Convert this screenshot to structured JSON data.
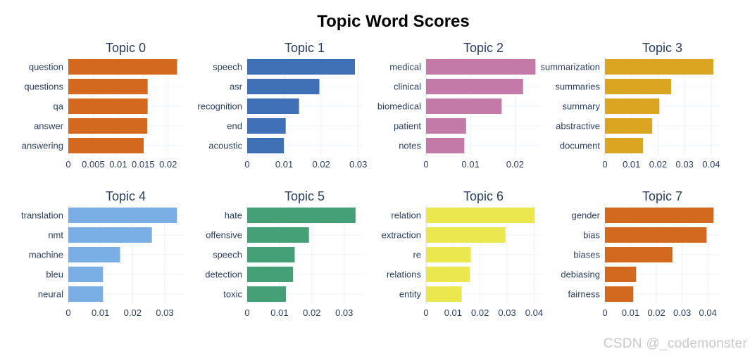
{
  "title": "Topic Word Scores",
  "watermark": "CSDN @_codemonster",
  "chart_data": [
    {
      "type": "bar",
      "orientation": "horizontal",
      "title": "Topic 0",
      "color": "#D2691E",
      "categories": [
        "question",
        "questions",
        "qa",
        "answer",
        "answering"
      ],
      "values": [
        0.0218,
        0.0159,
        0.0159,
        0.0158,
        0.0151
      ],
      "xlim": [
        0,
        0.023
      ],
      "xticks": [
        0,
        0.005,
        0.01,
        0.015,
        0.02
      ],
      "xtick_labels": [
        "0",
        "0.005",
        "0.01",
        "0.015",
        "0.02"
      ]
    },
    {
      "type": "bar",
      "orientation": "horizontal",
      "title": "Topic 1",
      "color": "#3f6fb5",
      "categories": [
        "speech",
        "asr",
        "recognition",
        "end",
        "acoustic"
      ],
      "values": [
        0.0291,
        0.0195,
        0.014,
        0.0104,
        0.0099
      ],
      "xlim": [
        0,
        0.031
      ],
      "xticks": [
        0,
        0.01,
        0.02,
        0.03
      ],
      "xtick_labels": [
        "0",
        "0.01",
        "0.02",
        "0.03"
      ]
    },
    {
      "type": "bar",
      "orientation": "horizontal",
      "title": "Topic 2",
      "color": "#c47aa8",
      "categories": [
        "medical",
        "clinical",
        "biomedical",
        "patient",
        "notes"
      ],
      "values": [
        0.0246,
        0.0218,
        0.017,
        0.009,
        0.0086
      ],
      "xlim": [
        0,
        0.0258
      ],
      "xticks": [
        0,
        0.01,
        0.02
      ],
      "xtick_labels": [
        "0",
        "0.01",
        "0.02"
      ]
    },
    {
      "type": "bar",
      "orientation": "horizontal",
      "title": "Topic 3",
      "color": "#DAA520",
      "categories": [
        "summarization",
        "summaries",
        "summary",
        "abstractive",
        "document"
      ],
      "values": [
        0.0408,
        0.0249,
        0.0205,
        0.0178,
        0.0143
      ],
      "xlim": [
        0,
        0.0432
      ],
      "xticks": [
        0,
        0.01,
        0.02,
        0.03,
        0.04
      ],
      "xtick_labels": [
        "0",
        "0.01",
        "0.02",
        "0.03",
        "0.04"
      ]
    },
    {
      "type": "bar",
      "orientation": "horizontal",
      "title": "Topic 4",
      "color": "#7aafe6",
      "categories": [
        "translation",
        "nmt",
        "machine",
        "bleu",
        "neural"
      ],
      "values": [
        0.0338,
        0.026,
        0.0161,
        0.0108,
        0.0108
      ],
      "xlim": [
        0,
        0.0357
      ],
      "xticks": [
        0,
        0.01,
        0.02,
        0.03
      ],
      "xtick_labels": [
        "0",
        "0.01",
        "0.02",
        "0.03"
      ]
    },
    {
      "type": "bar",
      "orientation": "horizontal",
      "title": "Topic 5",
      "color": "#45a077",
      "categories": [
        "hate",
        "offensive",
        "speech",
        "detection",
        "toxic"
      ],
      "values": [
        0.0335,
        0.0191,
        0.0147,
        0.0142,
        0.012
      ],
      "xlim": [
        0,
        0.0355
      ],
      "xticks": [
        0,
        0.01,
        0.02,
        0.03
      ],
      "xtick_labels": [
        "0",
        "0.01",
        "0.02",
        "0.03"
      ]
    },
    {
      "type": "bar",
      "orientation": "horizontal",
      "title": "Topic 6",
      "color": "#ebe84f",
      "categories": [
        "relation",
        "extraction",
        "re",
        "relations",
        "entity"
      ],
      "values": [
        0.0402,
        0.0294,
        0.0166,
        0.0162,
        0.0132
      ],
      "xlim": [
        0,
        0.0425
      ],
      "xticks": [
        0,
        0.01,
        0.02,
        0.03,
        0.04
      ],
      "xtick_labels": [
        "0",
        "0.01",
        "0.02",
        "0.03",
        "0.04"
      ]
    },
    {
      "type": "bar",
      "orientation": "horizontal",
      "title": "Topic 7",
      "color": "#D2691E",
      "categories": [
        "gender",
        "bias",
        "biases",
        "debiasing",
        "fairness"
      ],
      "values": [
        0.0422,
        0.0395,
        0.0262,
        0.0121,
        0.011
      ],
      "xlim": [
        0,
        0.0446
      ],
      "xticks": [
        0,
        0.01,
        0.02,
        0.03,
        0.04
      ],
      "xtick_labels": [
        "0",
        "0.01",
        "0.02",
        "0.03",
        "0.04"
      ]
    }
  ]
}
